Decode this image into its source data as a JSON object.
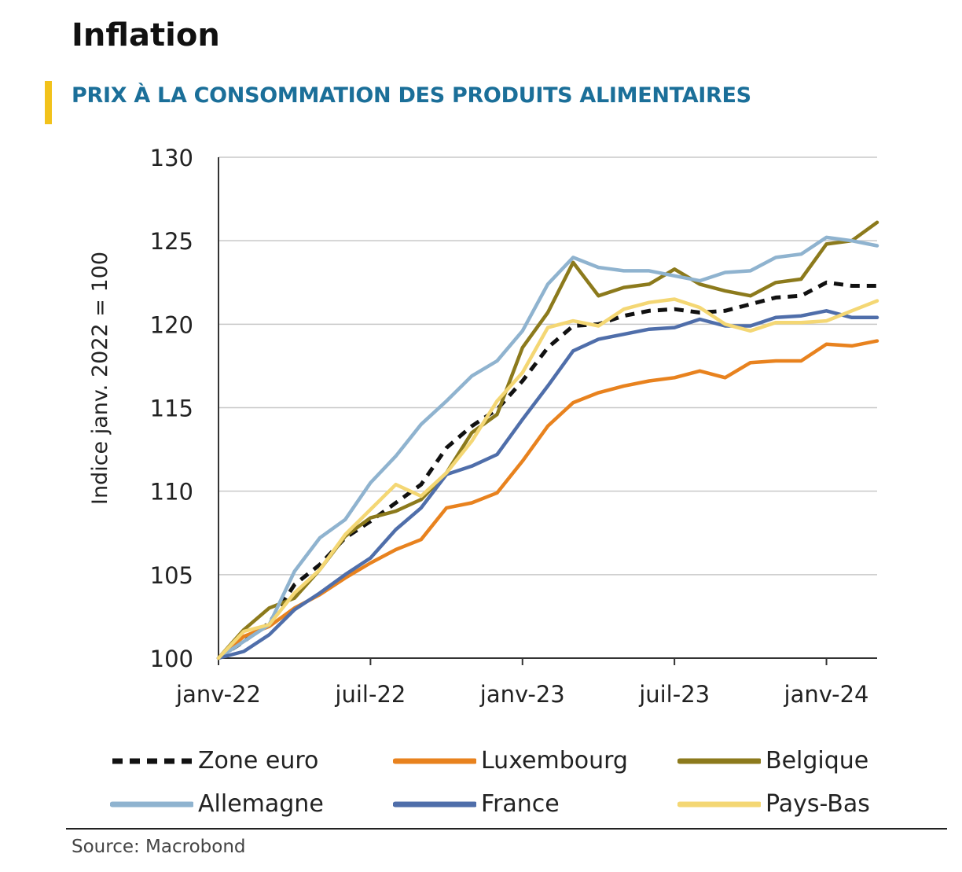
{
  "header": {
    "title": "Inflation",
    "subtitle": "PRIX À LA CONSOMMATION DES PRODUITS ALIMENTAIRES"
  },
  "colors": {
    "accent": "#f2c21b",
    "subtitle": "#1b6f99",
    "gridline": "#c8c8c8",
    "axis": "#333333"
  },
  "chart_data": {
    "type": "line",
    "title": "PRIX À LA CONSOMMATION DES PRODUITS ALIMENTAIRES",
    "xlabel": "",
    "ylabel": "Indice janv. 2022 = 100",
    "ylim": [
      100,
      130
    ],
    "yticks": [
      100,
      105,
      110,
      115,
      120,
      125,
      130
    ],
    "x_start_index": 0,
    "x_end_index": 26,
    "xticks": [
      {
        "index": 0,
        "label": "janv-22"
      },
      {
        "index": 6,
        "label": "juil-22"
      },
      {
        "index": 12,
        "label": "janv-23"
      },
      {
        "index": 18,
        "label": "juil-23"
      },
      {
        "index": 24,
        "label": "janv-24"
      }
    ],
    "grid": true,
    "legend_position": "bottom",
    "series": [
      {
        "name": "Zone euro",
        "color": "#111111",
        "dash": true,
        "values": [
          100,
          101.0,
          102.1,
          104.4,
          105.6,
          107.2,
          108.2,
          109.3,
          110.4,
          112.6,
          113.9,
          114.9,
          116.6,
          118.6,
          119.9,
          120.0,
          120.5,
          120.8,
          120.9,
          120.7,
          120.8,
          121.2,
          121.6,
          121.7,
          122.5,
          122.3,
          122.3
        ]
      },
      {
        "name": "Luxembourg",
        "color": "#e8821e",
        "dash": false,
        "values": [
          100,
          101.3,
          101.9,
          103.0,
          103.8,
          104.8,
          105.7,
          106.5,
          107.1,
          109.0,
          109.3,
          109.9,
          111.8,
          113.9,
          115.3,
          115.9,
          116.3,
          116.6,
          116.8,
          117.2,
          116.8,
          117.7,
          117.8,
          117.8,
          118.8,
          118.7,
          119.0
        ]
      },
      {
        "name": "Belgique",
        "color": "#8c7a1c",
        "dash": false,
        "values": [
          100,
          101.7,
          103.0,
          103.6,
          105.3,
          107.3,
          108.4,
          108.8,
          109.5,
          111.1,
          113.5,
          114.6,
          118.6,
          120.7,
          123.7,
          121.7,
          122.2,
          122.4,
          123.3,
          122.4,
          122.0,
          121.7,
          122.5,
          122.7,
          124.8,
          125.0,
          126.1
        ]
      },
      {
        "name": "Allemagne",
        "color": "#8fb3cf",
        "dash": false,
        "values": [
          100,
          101.0,
          102.0,
          105.2,
          107.2,
          108.3,
          110.5,
          112.1,
          114.0,
          115.4,
          116.9,
          117.8,
          119.6,
          122.4,
          124.0,
          123.4,
          123.2,
          123.2,
          122.9,
          122.6,
          123.1,
          123.2,
          124.0,
          124.2,
          125.2,
          125.0,
          124.7
        ]
      },
      {
        "name": "France",
        "color": "#4f6eaa",
        "dash": false,
        "values": [
          100,
          100.4,
          101.4,
          102.9,
          103.9,
          105.0,
          106.0,
          107.7,
          109.0,
          111.0,
          111.5,
          112.2,
          114.3,
          116.3,
          118.4,
          119.1,
          119.4,
          119.7,
          119.8,
          120.3,
          119.9,
          119.9,
          120.4,
          120.5,
          120.8,
          120.4,
          120.4
        ]
      },
      {
        "name": "Pays-Bas",
        "color": "#f4d774",
        "dash": false,
        "values": [
          100,
          101.6,
          102.0,
          103.9,
          105.3,
          107.4,
          108.9,
          110.4,
          109.7,
          111.1,
          113.0,
          115.4,
          117.1,
          119.8,
          120.2,
          119.9,
          120.9,
          121.3,
          121.5,
          121.0,
          120.0,
          119.6,
          120.1,
          120.1,
          120.2,
          120.8,
          121.4
        ]
      }
    ]
  },
  "legend_rows": [
    [
      "Zone euro",
      "Luxembourg",
      "Belgique"
    ],
    [
      "Allemagne",
      "France",
      "Pays-Bas"
    ]
  ],
  "footer": {
    "source": "Source: Macrobond"
  }
}
